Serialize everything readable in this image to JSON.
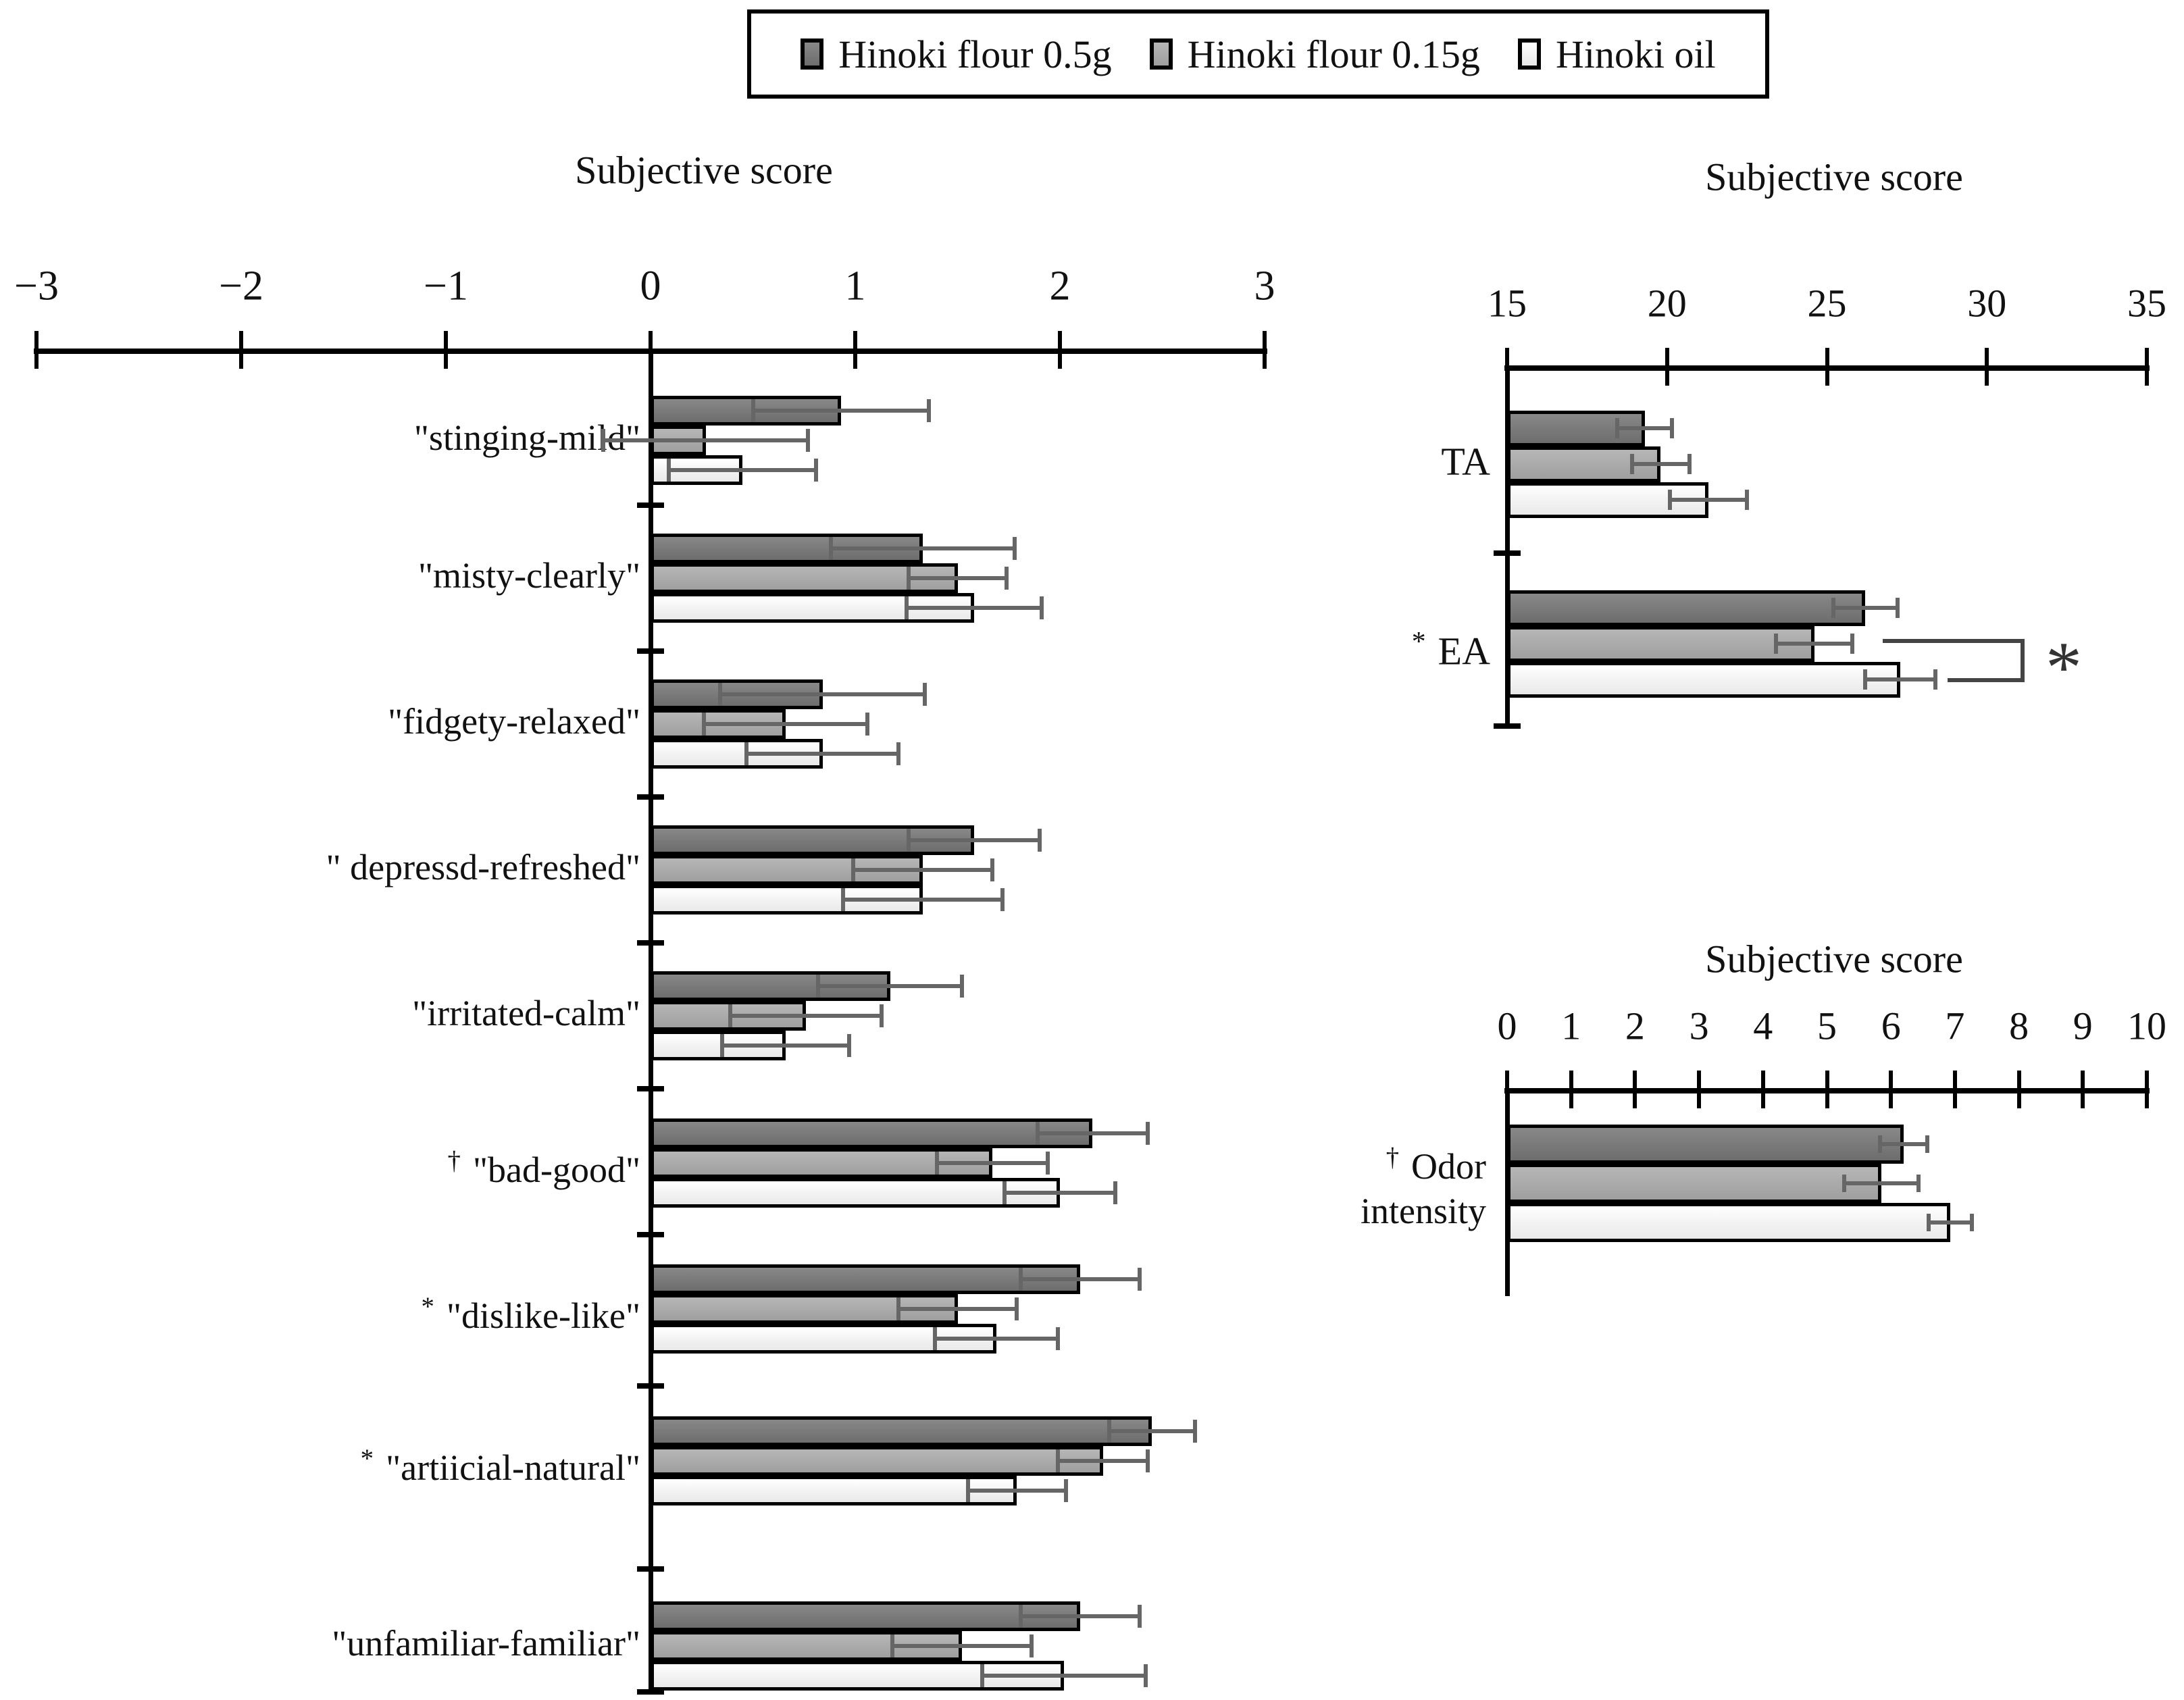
{
  "figure": {
    "background": "#ffffff",
    "legend": {
      "items": [
        {
          "label": "Hinoki flour 0.5g",
          "color": "#757575"
        },
        {
          "label": "Hinoki flour 0.15g",
          "color": "#ababab"
        },
        {
          "label": "Hinoki oil",
          "color": "#f2f2f2"
        }
      ]
    }
  },
  "colors": {
    "bar_outline": "#000000",
    "bar_dark": "#757575",
    "bar_medium": "#ababab",
    "bar_light": "#f2f2f2",
    "error_bar": "#666666",
    "bracket": "#444444"
  },
  "chart_data": [
    {
      "type": "bar",
      "orientation": "horizontal",
      "title": "Subjective score",
      "xlabel": "",
      "xlim": [
        -3,
        3
      ],
      "xtick_labels": [
        "−3",
        "−2",
        "−1",
        "0",
        "1",
        "2",
        "3"
      ],
      "grid": false,
      "legend_position": "top",
      "categories": [
        "\"stinging-mild\"",
        "\"misty-clearly\"",
        "\"fidgety-relaxed\"",
        "\" depressd-refreshed\"",
        "\"irritated-calm\"",
        "\"bad-good\"",
        "\"dislike-like\"",
        "\"artiicial-natural\"",
        "\"unfamiliar-familiar\""
      ],
      "category_markers": [
        "",
        "",
        "",
        "",
        "",
        "†",
        "*",
        "*",
        ""
      ],
      "series": [
        {
          "name": "Hinoki flour 0.5g",
          "values": [
            0.93,
            1.33,
            0.84,
            1.58,
            1.17,
            2.16,
            2.1,
            2.45,
            2.1
          ],
          "errors": [
            0.43,
            0.45,
            0.5,
            0.32,
            0.35,
            0.27,
            0.29,
            0.21,
            0.29
          ]
        },
        {
          "name": "Hinoki flour 0.15g",
          "values": [
            0.27,
            1.5,
            0.66,
            1.33,
            0.76,
            1.67,
            1.5,
            2.21,
            1.52
          ],
          "errors": [
            0.5,
            0.24,
            0.4,
            0.34,
            0.37,
            0.27,
            0.29,
            0.22,
            0.34
          ]
        },
        {
          "name": "Hinoki oil",
          "values": [
            0.45,
            1.58,
            0.84,
            1.33,
            0.66,
            2.0,
            1.69,
            1.79,
            2.02
          ],
          "errors": [
            0.36,
            0.33,
            0.37,
            0.39,
            0.31,
            0.27,
            0.3,
            0.24,
            0.4
          ]
        }
      ]
    },
    {
      "type": "bar",
      "orientation": "horizontal",
      "title": "Subjective score",
      "xlim": [
        15,
        35
      ],
      "xtick_labels": [
        "15",
        "20",
        "25",
        "30",
        "35"
      ],
      "grid": false,
      "categories": [
        "TA",
        "EA"
      ],
      "category_markers": [
        "",
        "*"
      ],
      "series": [
        {
          "name": "Hinoki flour 0.5g",
          "values": [
            19.3,
            26.2
          ],
          "errors": [
            0.85,
            1.0
          ]
        },
        {
          "name": "Hinoki flour 0.15g",
          "values": [
            19.8,
            24.6
          ],
          "errors": [
            0.9,
            1.2
          ]
        },
        {
          "name": "Hinoki oil",
          "values": [
            21.3,
            27.3
          ],
          "errors": [
            1.2,
            1.1
          ]
        }
      ],
      "bracket": {
        "label": "*",
        "category": "EA",
        "between": [
          "Hinoki flour 0.15g",
          "Hinoki oil"
        ]
      }
    },
    {
      "type": "bar",
      "orientation": "horizontal",
      "title": "Subjective score",
      "xlim": [
        0,
        10
      ],
      "xtick_labels": [
        "0",
        "1",
        "2",
        "3",
        "4",
        "5",
        "6",
        "7",
        "8",
        "9",
        "10"
      ],
      "grid": false,
      "categories": [
        "Odor intensity"
      ],
      "category_markers": [
        "†"
      ],
      "series": [
        {
          "name": "Hinoki flour 0.5g",
          "values": [
            6.2
          ],
          "errors": [
            0.37
          ]
        },
        {
          "name": "Hinoki flour 0.15g",
          "values": [
            5.85
          ],
          "errors": [
            0.58
          ]
        },
        {
          "name": "Hinoki oil",
          "values": [
            6.93
          ],
          "errors": [
            0.34
          ]
        }
      ]
    }
  ]
}
